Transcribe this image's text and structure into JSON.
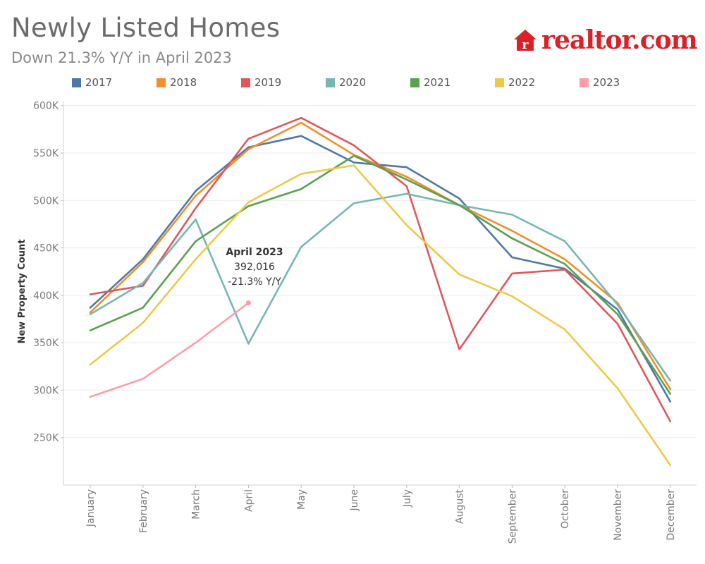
{
  "header": {
    "title": "Newly Listed Homes",
    "subtitle": "Down 21.3% Y/Y in April 2023",
    "logo_text": "realtor.com"
  },
  "chart_data": {
    "type": "line",
    "title": "Newly Listed Homes",
    "subtitle": "Down 21.3% Y/Y in April 2023",
    "xlabel": "",
    "ylabel": "New Property Count",
    "ylim": [
      200000,
      605000
    ],
    "grid": true,
    "legend": "top",
    "categories": [
      "January",
      "February",
      "March",
      "April",
      "May",
      "June",
      "July",
      "August",
      "September",
      "October",
      "November",
      "December"
    ],
    "yticks": [
      {
        "value": 250000,
        "label": "250K"
      },
      {
        "value": 300000,
        "label": "300K"
      },
      {
        "value": 350000,
        "label": "350K"
      },
      {
        "value": 400000,
        "label": "400K"
      },
      {
        "value": 450000,
        "label": "450K"
      },
      {
        "value": 500000,
        "label": "500K"
      },
      {
        "value": 550000,
        "label": "550K"
      },
      {
        "value": 600000,
        "label": "600K"
      }
    ],
    "series": [
      {
        "name": "2017",
        "color": "#4e79a7",
        "values": [
          387000,
          438000,
          510000,
          556000,
          568000,
          540000,
          535000,
          502000,
          440000,
          428000,
          385000,
          288000
        ]
      },
      {
        "name": "2018",
        "color": "#f28e2b",
        "values": [
          382000,
          435000,
          505000,
          554000,
          582000,
          548000,
          525000,
          495000,
          468000,
          438000,
          392000,
          301000
        ]
      },
      {
        "name": "2019",
        "color": "#e15759",
        "values": [
          401000,
          410000,
          492000,
          565000,
          587000,
          558000,
          515000,
          343000,
          423000,
          427000,
          370000,
          267000
        ]
      },
      {
        "name": "2020",
        "color": "#76b7b2",
        "values": [
          380000,
          413000,
          480000,
          349000,
          451000,
          497000,
          507000,
          495000,
          485000,
          457000,
          390000,
          310000
        ]
      },
      {
        "name": "2021",
        "color": "#59a14f",
        "values": [
          363000,
          387000,
          457000,
          494000,
          512000,
          547000,
          522000,
          495000,
          460000,
          433000,
          380000,
          296000
        ]
      },
      {
        "name": "2022",
        "color": "#edc948",
        "values": [
          327000,
          371000,
          438000,
          498000,
          528000,
          537000,
          474000,
          422000,
          399000,
          364000,
          302000,
          221000
        ]
      },
      {
        "name": "2023",
        "color": "#ff9da7",
        "values": [
          293000,
          312000,
          350000,
          392016,
          null,
          null,
          null,
          null,
          null,
          null,
          null,
          null
        ]
      }
    ],
    "annotation": {
      "series": "2023",
      "category": "April",
      "lines": [
        "April 2023",
        "392,016",
        "-21.3% Y/Y"
      ]
    }
  }
}
